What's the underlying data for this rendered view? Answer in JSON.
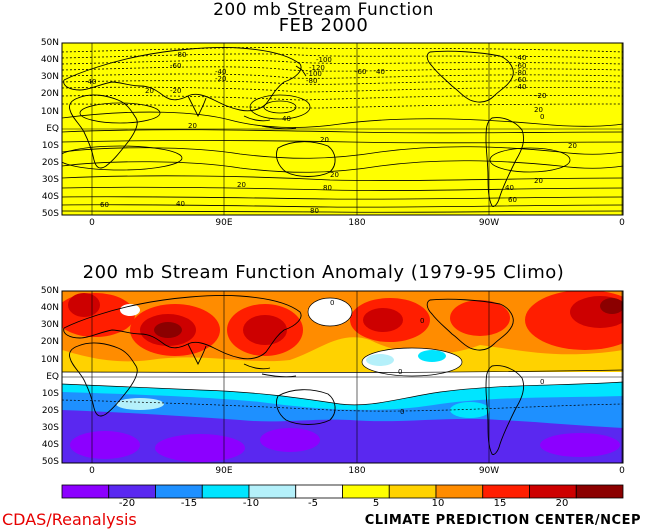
{
  "top_map": {
    "title": "200 mb Stream Function",
    "subtitle": "FEB 2000",
    "fill_color": "#ffff00",
    "contour_labels": [
      "-80",
      "-60",
      "-40",
      "-20",
      "-100",
      "-120",
      "-100",
      "-80",
      "-60",
      "40",
      "-40",
      "-60",
      "-80",
      "-60",
      "-40",
      "-20",
      "20",
      "40",
      "-40",
      "-20",
      "0",
      "20",
      "20",
      "20",
      "20",
      "20",
      "20",
      "20",
      "40",
      "40",
      "60",
      "60",
      "80",
      "80"
    ]
  },
  "bottom_map": {
    "title": "200 mb Stream Function Anomaly (1979-95 Climo)",
    "contour_labels": [
      "0",
      "0",
      "0",
      "0",
      "0"
    ]
  },
  "lat_labels": [
    "50N",
    "40N",
    "30N",
    "20N",
    "10N",
    "EQ",
    "10S",
    "20S",
    "30S",
    "40S",
    "50S"
  ],
  "lon_labels": [
    "0",
    "90E",
    "180",
    "90W",
    "0"
  ],
  "colorbar": {
    "tick_labels": [
      "-20",
      "-15",
      "-10",
      "-5",
      "5",
      "10",
      "15",
      "20"
    ],
    "colors": [
      "#8c00ff",
      "#5a28f0",
      "#1e90ff",
      "#00e5ff",
      "#b4f0fa",
      "#ffffff",
      "#ffff00",
      "#ffd200",
      "#ff8c00",
      "#ff1e00",
      "#cd0000",
      "#8b0000"
    ]
  },
  "footer": {
    "left": "CDAS/Reanalysis",
    "right": "CLIMATE PREDICTION CENTER/NCEP"
  }
}
